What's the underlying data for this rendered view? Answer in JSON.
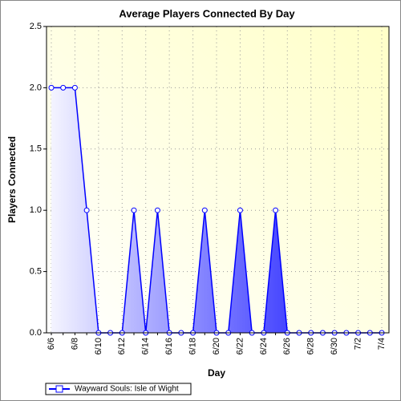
{
  "chart_data": {
    "type": "area",
    "title": "Average Players Connected By Day",
    "x_label": "Day",
    "y_label": "Players Connected",
    "categories": [
      "6/6",
      null,
      "6/8",
      null,
      "6/10",
      null,
      "6/12",
      null,
      "6/14",
      null,
      "6/16",
      null,
      "6/18",
      null,
      "6/20",
      null,
      "6/22",
      null,
      "6/24",
      null,
      "6/26",
      null,
      "6/28",
      null,
      "6/30",
      null,
      "7/2",
      null,
      "7/4"
    ],
    "series": [
      {
        "name": "Wayward Souls: Isle of Wight",
        "color": "#0000ff",
        "values": [
          2,
          2,
          2,
          1,
          0,
          0,
          0,
          1,
          0,
          1,
          0,
          0,
          0,
          1,
          0,
          0,
          1,
          0,
          0,
          1,
          0,
          0,
          0,
          0,
          0,
          0,
          0,
          0,
          0
        ]
      }
    ],
    "ylim": [
      0,
      2.5
    ],
    "yticks": [
      {
        "value": 0,
        "label": "0.0"
      },
      0.5,
      {
        "value": 1,
        "label": "1.0"
      },
      1.5,
      {
        "value": 2,
        "label": "2.0"
      },
      2.5
    ],
    "grid": true,
    "legend": "bottom-left"
  }
}
